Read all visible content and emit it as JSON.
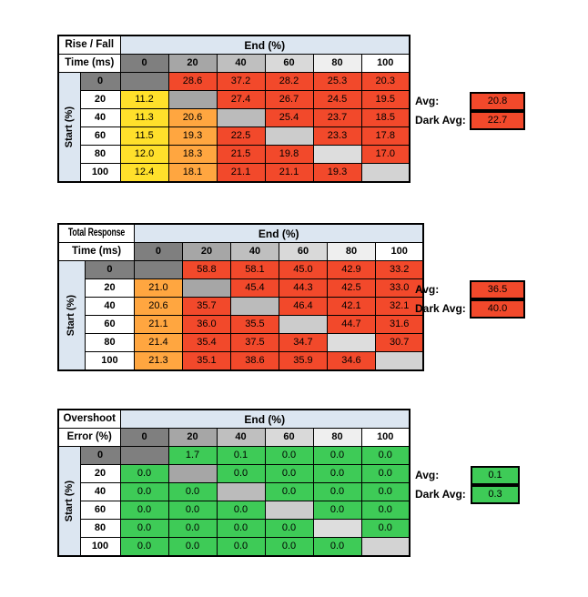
{
  "colors": {
    "red": "#F2492B",
    "orange": "#FFA640",
    "yellow": "#FFE02B",
    "green": "#3ECB57",
    "header_blue": "#DCE6F1",
    "col_header_scale": [
      "#7F7F7F",
      "#A6A6A6",
      "#BFBFBF",
      "#D9D9D9",
      "#EFEFEF",
      "#FFFFFF"
    ],
    "diagonal_scale": [
      "#7F7F7F",
      "#A6A6A6",
      "#BBBBBB",
      "#CCCCCC",
      "#DDDDDD",
      "#D3D3D3"
    ],
    "row_header_dark": "#7F7F7F",
    "row_header_light": "#FFFFFF"
  },
  "shared": {
    "end_header": "End (%)",
    "start_label": "Start (%)",
    "col_headers": [
      "0",
      "20",
      "40",
      "60",
      "80",
      "100"
    ],
    "row_headers": [
      "0",
      "20",
      "40",
      "60",
      "80",
      "100"
    ],
    "avg_label": "Avg:",
    "dark_avg_label": "Dark Avg:"
  },
  "tables": [
    {
      "title_line1": "Rise / Fall",
      "title_line2": "Time (ms)",
      "avg": "20.8",
      "dark_avg": "22.7",
      "avg_color": "red",
      "cells": [
        [
          null,
          "28.6",
          "37.2",
          "28.2",
          "25.3",
          "20.3"
        ],
        [
          "11.2",
          null,
          "27.4",
          "26.7",
          "24.5",
          "19.5"
        ],
        [
          "11.3",
          "20.6",
          null,
          "25.4",
          "23.7",
          "18.5"
        ],
        [
          "11.5",
          "19.3",
          "22.5",
          null,
          "23.3",
          "17.8"
        ],
        [
          "12.0",
          "18.3",
          "21.5",
          "19.8",
          null,
          "17.0"
        ],
        [
          "12.4",
          "18.1",
          "21.1",
          "21.1",
          "19.3",
          null
        ]
      ],
      "cell_colors": [
        [
          null,
          "red",
          "red",
          "red",
          "red",
          "red"
        ],
        [
          "yellow",
          null,
          "red",
          "red",
          "red",
          "red"
        ],
        [
          "yellow",
          "orange",
          null,
          "red",
          "red",
          "red"
        ],
        [
          "yellow",
          "orange",
          "red",
          null,
          "red",
          "red"
        ],
        [
          "yellow",
          "orange",
          "red",
          "red",
          null,
          "red"
        ],
        [
          "yellow",
          "orange",
          "red",
          "red",
          "red",
          null
        ]
      ]
    },
    {
      "title_line1": "Total Response",
      "title_line2": "Time (ms)",
      "avg": "36.5",
      "dark_avg": "40.0",
      "avg_color": "red",
      "cells": [
        [
          null,
          "58.8",
          "58.1",
          "45.0",
          "42.9",
          "33.2"
        ],
        [
          "21.0",
          null,
          "45.4",
          "44.3",
          "42.5",
          "33.0"
        ],
        [
          "20.6",
          "35.7",
          null,
          "46.4",
          "42.1",
          "32.1"
        ],
        [
          "21.1",
          "36.0",
          "35.5",
          null,
          "44.7",
          "31.6"
        ],
        [
          "21.4",
          "35.4",
          "37.5",
          "34.7",
          null,
          "30.7"
        ],
        [
          "21.3",
          "35.1",
          "38.6",
          "35.9",
          "34.6",
          null
        ]
      ],
      "cell_colors": [
        [
          null,
          "red",
          "red",
          "red",
          "red",
          "red"
        ],
        [
          "orange",
          null,
          "red",
          "red",
          "red",
          "red"
        ],
        [
          "orange",
          "red",
          null,
          "red",
          "red",
          "red"
        ],
        [
          "orange",
          "red",
          "red",
          null,
          "red",
          "red"
        ],
        [
          "orange",
          "red",
          "red",
          "red",
          null,
          "red"
        ],
        [
          "orange",
          "red",
          "red",
          "red",
          "red",
          null
        ]
      ]
    },
    {
      "title_line1": "Overshoot",
      "title_line2": "Error (%)",
      "avg": "0.1",
      "dark_avg": "0.3",
      "avg_color": "green",
      "cells": [
        [
          null,
          "1.7",
          "0.1",
          "0.0",
          "0.0",
          "0.0"
        ],
        [
          "0.0",
          null,
          "0.0",
          "0.0",
          "0.0",
          "0.0"
        ],
        [
          "0.0",
          "0.0",
          null,
          "0.0",
          "0.0",
          "0.0"
        ],
        [
          "0.0",
          "0.0",
          "0.0",
          null,
          "0.0",
          "0.0"
        ],
        [
          "0.0",
          "0.0",
          "0.0",
          "0.0",
          null,
          "0.0"
        ],
        [
          "0.0",
          "0.0",
          "0.0",
          "0.0",
          "0.0",
          null
        ]
      ],
      "cell_colors": [
        [
          null,
          "green",
          "green",
          "green",
          "green",
          "green"
        ],
        [
          "green",
          null,
          "green",
          "green",
          "green",
          "green"
        ],
        [
          "green",
          "green",
          null,
          "green",
          "green",
          "green"
        ],
        [
          "green",
          "green",
          "green",
          null,
          "green",
          "green"
        ],
        [
          "green",
          "green",
          "green",
          "green",
          null,
          "green"
        ],
        [
          "green",
          "green",
          "green",
          "green",
          "green",
          null
        ]
      ]
    }
  ]
}
